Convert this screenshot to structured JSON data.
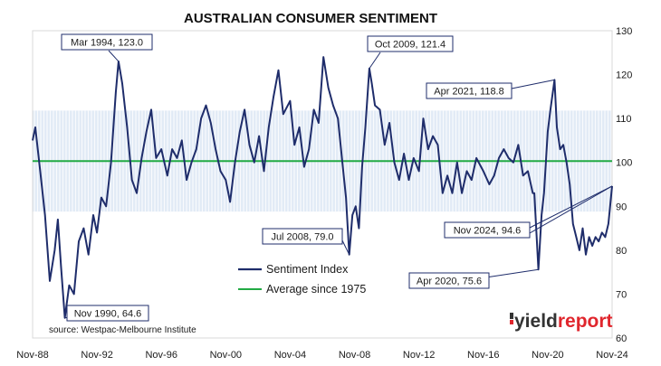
{
  "chart_data": {
    "type": "line",
    "title": "AUSTRALIAN CONSUMER SENTIMENT",
    "source": "source: Westpac-Melbourne Institute",
    "logo": "yieldreport",
    "colors": {
      "series": "#1f2d6b",
      "average": "#22aa44",
      "band": "#c9d8ef",
      "logo_dark": "#333333",
      "logo_red": "#e0262d"
    },
    "x_ticks": [
      "Nov-88",
      "Nov-92",
      "Nov-96",
      "Nov-00",
      "Nov-04",
      "Nov-08",
      "Nov-12",
      "Nov-16",
      "Nov-20",
      "Nov-24"
    ],
    "x_range": [
      "Nov-88",
      "Nov-24"
    ],
    "y_ticks": [
      60,
      70,
      80,
      90,
      100,
      110,
      120,
      130
    ],
    "ylim": [
      60,
      130
    ],
    "y_axis_side": "right",
    "average_value": 100.3,
    "band_range": [
      88.8,
      111.8
    ],
    "legend": {
      "placement": "center",
      "series_label": "Sentiment Index",
      "average_label": "Average since 1975"
    },
    "annotations": [
      {
        "text": "Mar 1994, 123.0",
        "x": 1994.17,
        "y": 123.0
      },
      {
        "text": "Oct 2009, 121.4",
        "x": 2009.75,
        "y": 121.4
      },
      {
        "text": "Apr 2021, 118.8",
        "x": 2021.25,
        "y": 118.8
      },
      {
        "text": "Jul 2008, 79.0",
        "x": 2008.5,
        "y": 79.0
      },
      {
        "text": "Nov 2024, 94.6",
        "x": 2024.83,
        "y": 94.6
      },
      {
        "text": "Apr 2020, 75.6",
        "x": 2020.25,
        "y": 75.6
      },
      {
        "text": "Nov 1990, 64.6",
        "x": 1990.83,
        "y": 64.6
      }
    ],
    "series": [
      {
        "name": "Sentiment Index",
        "points": [
          [
            1988.83,
            105
          ],
          [
            1989.0,
            108
          ],
          [
            1989.3,
            98
          ],
          [
            1989.6,
            88
          ],
          [
            1989.9,
            73
          ],
          [
            1990.2,
            80
          ],
          [
            1990.4,
            87
          ],
          [
            1990.6,
            76
          ],
          [
            1990.83,
            64.6
          ],
          [
            1991.1,
            72
          ],
          [
            1991.4,
            70
          ],
          [
            1991.7,
            82
          ],
          [
            1992.0,
            85
          ],
          [
            1992.3,
            79
          ],
          [
            1992.6,
            88
          ],
          [
            1992.83,
            84
          ],
          [
            1993.1,
            92
          ],
          [
            1993.4,
            90
          ],
          [
            1993.7,
            100
          ],
          [
            1994.0,
            116
          ],
          [
            1994.17,
            123.0
          ],
          [
            1994.4,
            118
          ],
          [
            1994.7,
            108
          ],
          [
            1995.0,
            96
          ],
          [
            1995.3,
            93
          ],
          [
            1995.6,
            101
          ],
          [
            1995.9,
            107
          ],
          [
            1996.2,
            112
          ],
          [
            1996.5,
            101
          ],
          [
            1996.83,
            103
          ],
          [
            1997.2,
            97
          ],
          [
            1997.5,
            103
          ],
          [
            1997.8,
            101
          ],
          [
            1998.1,
            105
          ],
          [
            1998.4,
            96
          ],
          [
            1998.7,
            100
          ],
          [
            1999.0,
            103
          ],
          [
            1999.3,
            110
          ],
          [
            1999.6,
            113
          ],
          [
            1999.9,
            109
          ],
          [
            2000.2,
            103
          ],
          [
            2000.5,
            98
          ],
          [
            2000.83,
            96
          ],
          [
            2001.1,
            91
          ],
          [
            2001.4,
            100
          ],
          [
            2001.7,
            107
          ],
          [
            2002.0,
            112
          ],
          [
            2002.3,
            104
          ],
          [
            2002.6,
            100
          ],
          [
            2002.9,
            106
          ],
          [
            2003.2,
            98
          ],
          [
            2003.5,
            108
          ],
          [
            2003.8,
            115
          ],
          [
            2004.1,
            121
          ],
          [
            2004.4,
            111
          ],
          [
            2004.83,
            114
          ],
          [
            2005.1,
            104
          ],
          [
            2005.4,
            108
          ],
          [
            2005.7,
            99
          ],
          [
            2006.0,
            103
          ],
          [
            2006.3,
            112
          ],
          [
            2006.6,
            109
          ],
          [
            2006.9,
            124
          ],
          [
            2007.2,
            117
          ],
          [
            2007.5,
            113
          ],
          [
            2007.8,
            110
          ],
          [
            2008.1,
            99
          ],
          [
            2008.3,
            92
          ],
          [
            2008.5,
            79.0
          ],
          [
            2008.7,
            88
          ],
          [
            2008.9,
            90
          ],
          [
            2009.1,
            85
          ],
          [
            2009.3,
            99
          ],
          [
            2009.5,
            108
          ],
          [
            2009.75,
            121.4
          ],
          [
            2009.9,
            118
          ],
          [
            2010.1,
            113
          ],
          [
            2010.4,
            112
          ],
          [
            2010.7,
            104
          ],
          [
            2011.0,
            109
          ],
          [
            2011.3,
            100
          ],
          [
            2011.6,
            96
          ],
          [
            2011.9,
            102
          ],
          [
            2012.2,
            96
          ],
          [
            2012.5,
            101
          ],
          [
            2012.83,
            98
          ],
          [
            2013.1,
            110
          ],
          [
            2013.4,
            103
          ],
          [
            2013.7,
            106
          ],
          [
            2014.0,
            104
          ],
          [
            2014.3,
            93
          ],
          [
            2014.6,
            97
          ],
          [
            2014.9,
            93
          ],
          [
            2015.2,
            100
          ],
          [
            2015.5,
            93
          ],
          [
            2015.8,
            98
          ],
          [
            2016.1,
            96
          ],
          [
            2016.4,
            101
          ],
          [
            2016.83,
            98
          ],
          [
            2017.2,
            95
          ],
          [
            2017.5,
            97
          ],
          [
            2017.8,
            101
          ],
          [
            2018.1,
            103
          ],
          [
            2018.4,
            101
          ],
          [
            2018.7,
            100
          ],
          [
            2019.0,
            104
          ],
          [
            2019.3,
            97
          ],
          [
            2019.6,
            98
          ],
          [
            2019.9,
            93
          ],
          [
            2020.0,
            93
          ],
          [
            2020.25,
            75.6
          ],
          [
            2020.45,
            88
          ],
          [
            2020.6,
            93
          ],
          [
            2020.83,
            107
          ],
          [
            2021.0,
            112
          ],
          [
            2021.25,
            118.8
          ],
          [
            2021.4,
            108
          ],
          [
            2021.6,
            103
          ],
          [
            2021.8,
            104
          ],
          [
            2022.0,
            100
          ],
          [
            2022.2,
            95
          ],
          [
            2022.4,
            86
          ],
          [
            2022.6,
            83
          ],
          [
            2022.8,
            80
          ],
          [
            2023.0,
            85
          ],
          [
            2023.2,
            79
          ],
          [
            2023.4,
            83
          ],
          [
            2023.6,
            81
          ],
          [
            2023.8,
            83
          ],
          [
            2024.0,
            82
          ],
          [
            2024.2,
            84
          ],
          [
            2024.4,
            83
          ],
          [
            2024.6,
            86
          ],
          [
            2024.83,
            94.6
          ]
        ]
      },
      {
        "name": "Average since 1975",
        "points": [
          [
            1988.83,
            100.3
          ],
          [
            2024.83,
            100.3
          ]
        ]
      }
    ]
  }
}
